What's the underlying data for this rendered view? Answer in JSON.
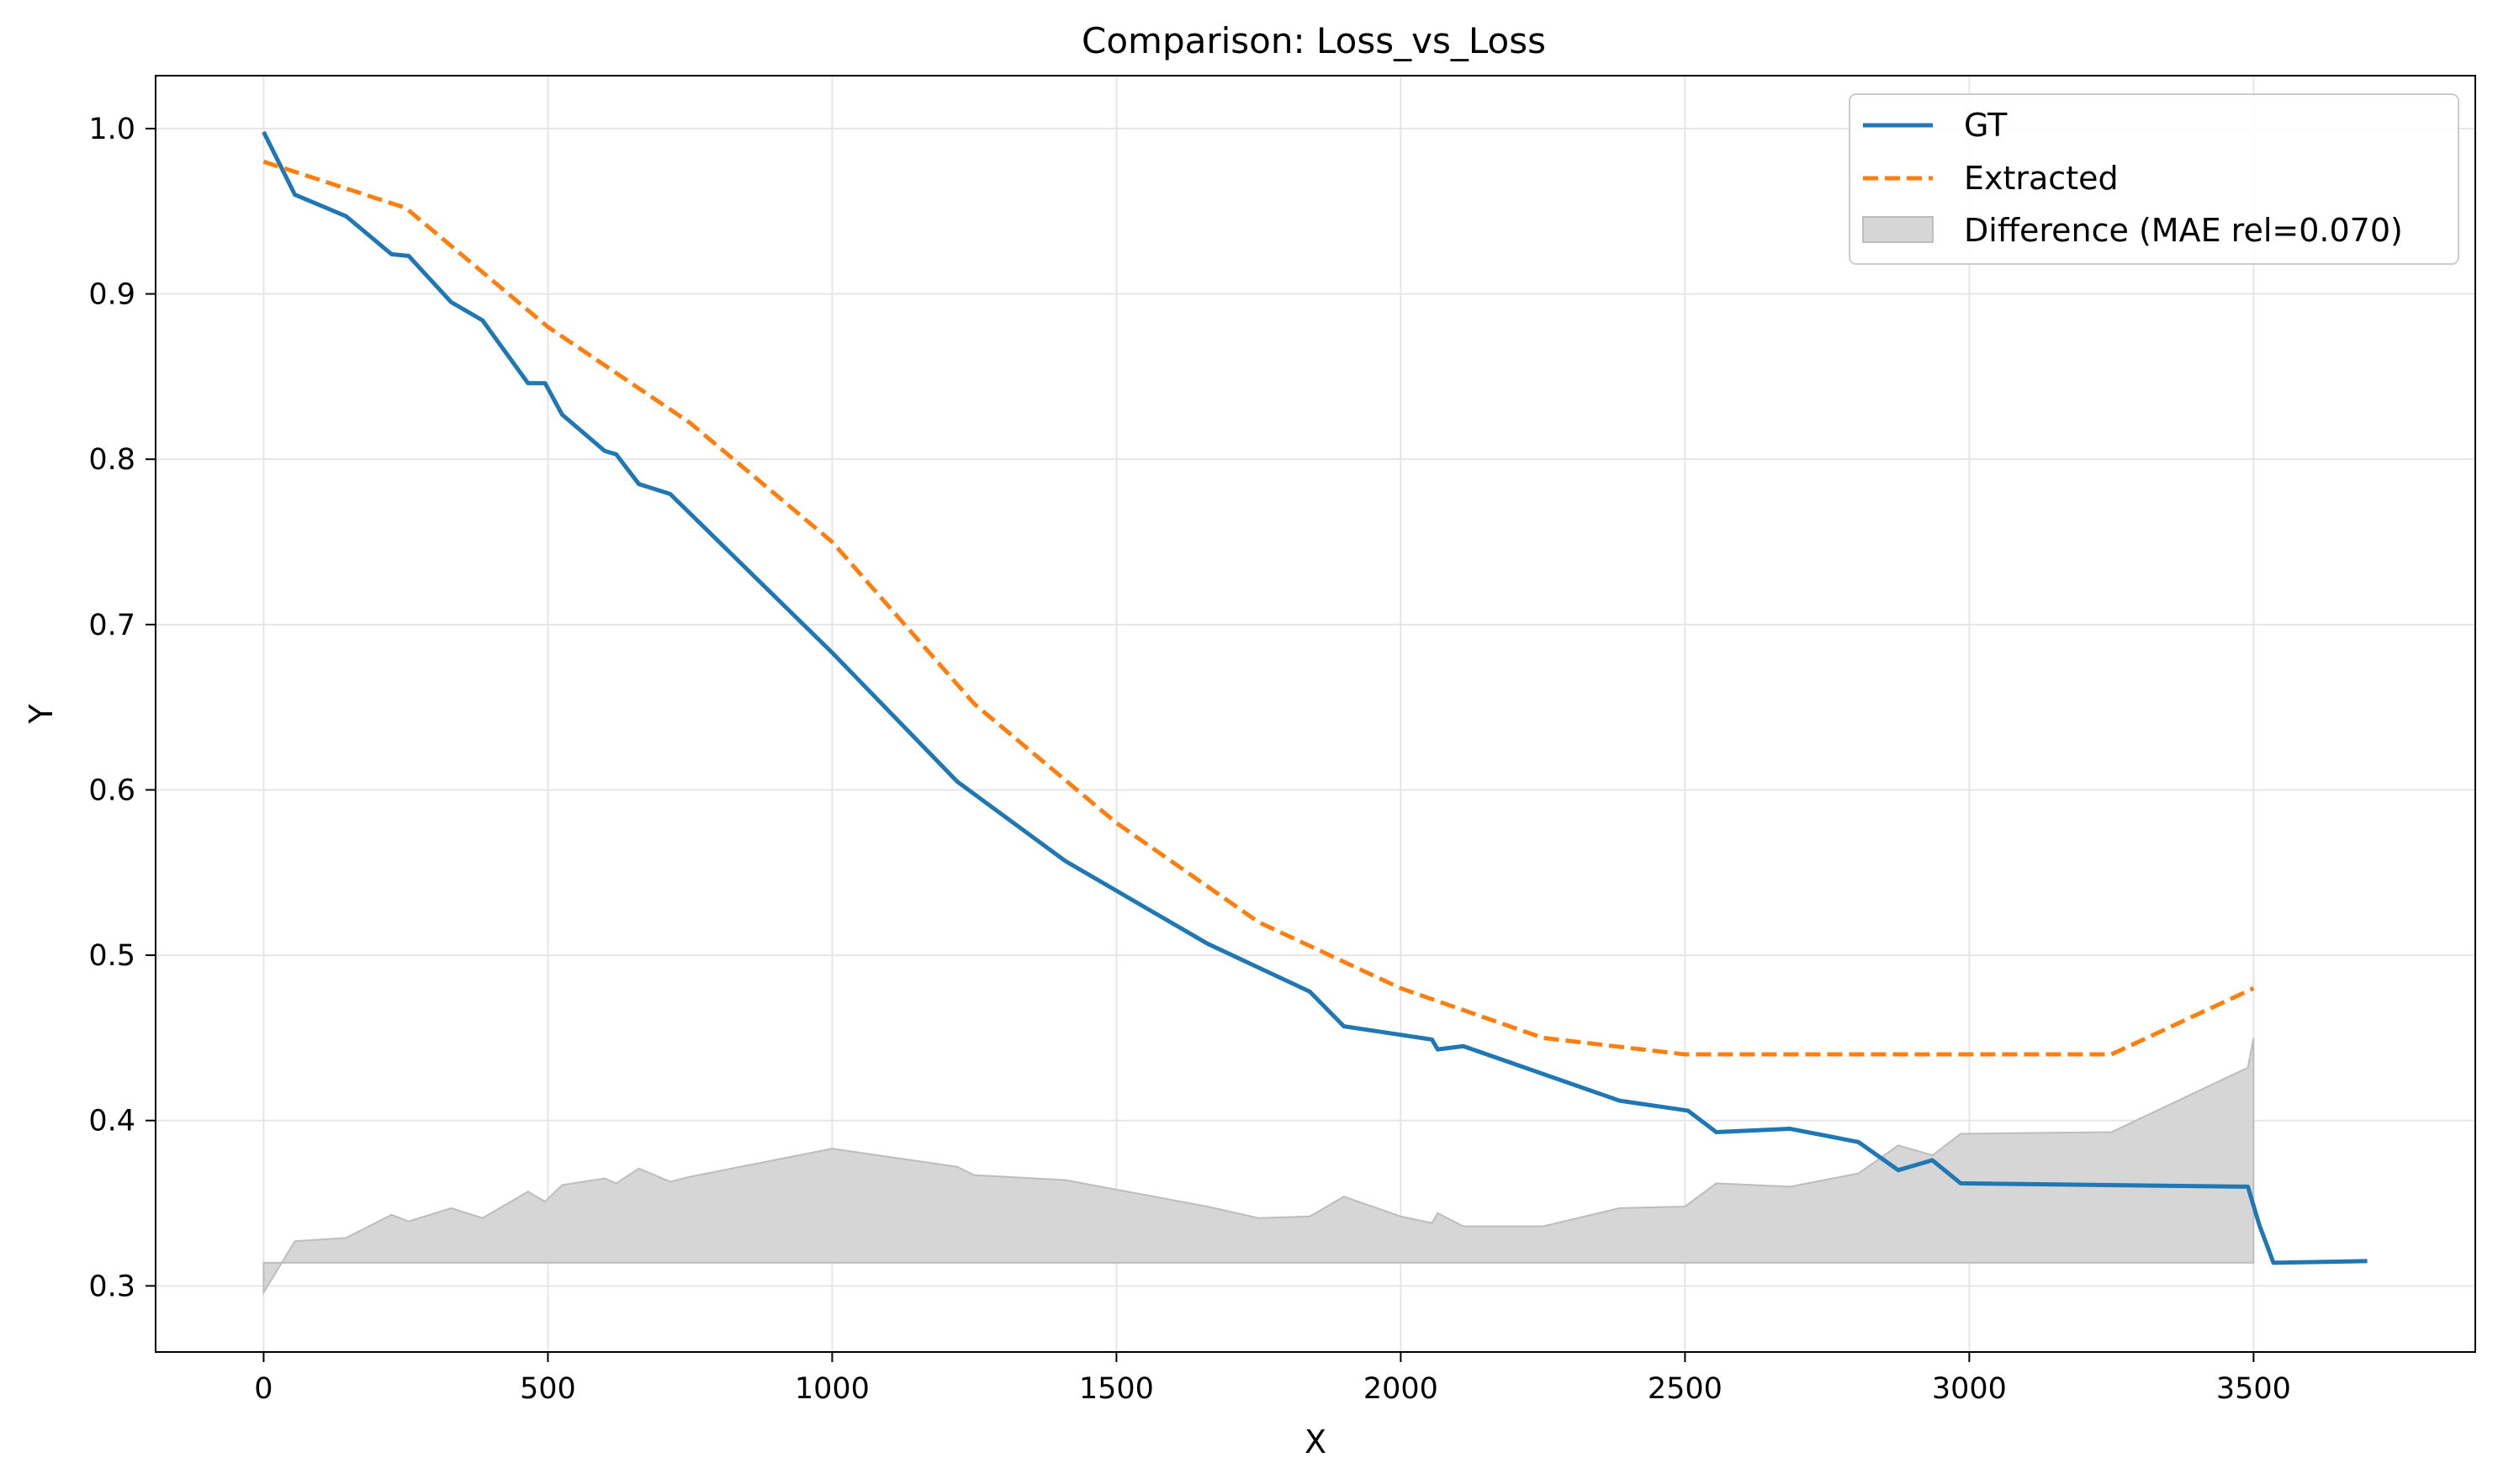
{
  "chart_data": {
    "type": "line",
    "title": "Comparison: Loss_vs_Loss",
    "xlabel": "X",
    "ylabel": "Y",
    "xlim": [
      -190,
      3890
    ],
    "ylim": [
      0.26,
      1.032
    ],
    "x_ticks": [
      0,
      500,
      1000,
      1500,
      2000,
      2500,
      3000,
      3500
    ],
    "y_ticks": [
      0.3,
      0.4,
      0.5,
      0.6,
      0.7,
      0.8,
      0.9,
      1.0
    ],
    "x_tick_labels": [
      "0",
      "500",
      "1000",
      "1500",
      "2000",
      "2500",
      "3000",
      "3500"
    ],
    "y_tick_labels": [
      "0.3",
      "0.4",
      "0.5",
      "0.6",
      "0.7",
      "0.8",
      "0.9",
      "1.0"
    ],
    "grid": true,
    "legend_position": "top-right",
    "colors": {
      "gt": "#1f77b4",
      "extracted": "#ff7f0e",
      "difference": "#d6d6d6",
      "difference_edge": "#bdbdbd",
      "grid": "#e6e6e6"
    },
    "series": [
      {
        "name": "GT",
        "style": "solid",
        "x": [
          0,
          55,
          145,
          225,
          255,
          330,
          385,
          465,
          495,
          525,
          600,
          620,
          660,
          715,
          1000,
          1220,
          1410,
          1660,
          1840,
          1900,
          2055,
          2065,
          2110,
          2385,
          2505,
          2555,
          2685,
          2805,
          2875,
          2935,
          2985,
          3490,
          3510,
          3535,
          3700
        ],
        "y": [
          0.998,
          0.96,
          0.947,
          0.924,
          0.923,
          0.895,
          0.884,
          0.846,
          0.846,
          0.827,
          0.805,
          0.803,
          0.785,
          0.779,
          0.683,
          0.605,
          0.557,
          0.507,
          0.478,
          0.457,
          0.449,
          0.443,
          0.445,
          0.412,
          0.406,
          0.393,
          0.395,
          0.387,
          0.37,
          0.376,
          0.362,
          0.36,
          0.337,
          0.314,
          0.315
        ]
      },
      {
        "name": "Extracted",
        "style": "dashed",
        "x": [
          0,
          250,
          500,
          750,
          1000,
          1250,
          1500,
          1750,
          2000,
          2250,
          2500,
          2750,
          3000,
          3250,
          3500
        ],
        "y": [
          0.98,
          0.952,
          0.88,
          0.822,
          0.75,
          0.652,
          0.58,
          0.52,
          0.48,
          0.45,
          0.44,
          0.44,
          0.44,
          0.44,
          0.48
        ]
      }
    ],
    "difference": {
      "name": "Difference (MAE rel=0.070)",
      "baseline": 0.314,
      "x": [
        0,
        55,
        145,
        225,
        255,
        330,
        385,
        465,
        495,
        525,
        600,
        620,
        660,
        715,
        750,
        1000,
        1220,
        1250,
        1410,
        1660,
        1750,
        1840,
        1900,
        2000,
        2055,
        2065,
        2110,
        2250,
        2385,
        2500,
        2555,
        2685,
        2805,
        2875,
        2935,
        2985,
        3250,
        3490,
        3500
      ],
      "y": [
        0.296,
        0.327,
        0.329,
        0.343,
        0.339,
        0.347,
        0.341,
        0.357,
        0.351,
        0.361,
        0.365,
        0.362,
        0.371,
        0.363,
        0.366,
        0.383,
        0.372,
        0.367,
        0.364,
        0.348,
        0.341,
        0.342,
        0.354,
        0.342,
        0.338,
        0.344,
        0.336,
        0.336,
        0.347,
        0.348,
        0.362,
        0.36,
        0.368,
        0.385,
        0.379,
        0.392,
        0.393,
        0.432,
        0.45
      ]
    }
  }
}
